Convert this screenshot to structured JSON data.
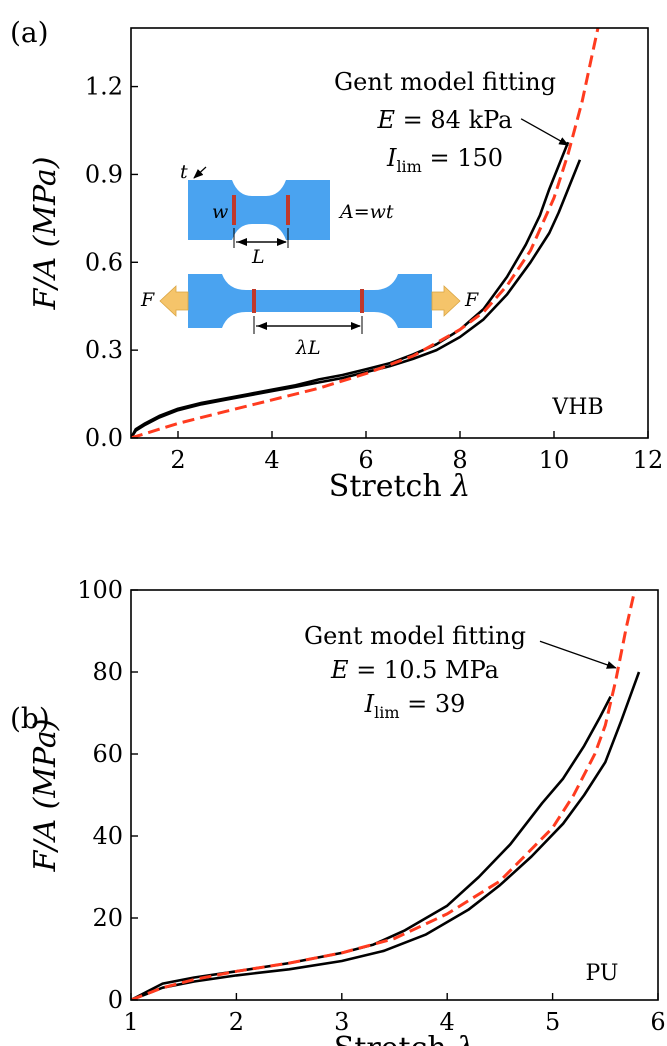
{
  "chart_data": [
    {
      "panel_label": "(a)",
      "type": "line",
      "xlabel": "Stretch",
      "xlabel_symbol": "λ",
      "ylabel": "F/A (MPa)",
      "xlim": [
        1,
        12
      ],
      "ylim": [
        0,
        1.4
      ],
      "xticks": [
        2,
        4,
        6,
        8,
        10,
        12
      ],
      "xtick_labels": [
        "2",
        "4",
        "6",
        "8",
        "10",
        "12"
      ],
      "yticks": [
        0.0,
        0.3,
        0.6,
        0.9,
        1.2
      ],
      "ytick_labels": [
        "0.0",
        "0.3",
        "0.6",
        "0.9",
        "1.2"
      ],
      "material_label": "VHB",
      "annotation": {
        "line1": "Gent model fitting",
        "E_symbol": "E",
        "E_text": " = 84 kPa",
        "I_symbol": "I",
        "I_sub": "lim",
        "I_text": " = 150",
        "arrow_from": [
          9.3,
          1.09
        ],
        "arrow_to": [
          10.3,
          1.0
        ]
      },
      "inset": {
        "t": "t",
        "w": "w",
        "L": "L",
        "area": "A=wt",
        "F_left": "F",
        "F_right": "F",
        "lambdaL": "λL",
        "sample_color": "#4aa3f0",
        "marker_color": "#c0392b",
        "arrow_color": "#f5c46a"
      },
      "series": [
        {
          "style": "solid",
          "color": "#000000",
          "x": [
            1.0,
            1.1,
            1.3,
            1.6,
            2.0,
            2.5,
            3.0,
            3.5,
            4.0,
            4.5,
            5.0,
            5.5,
            6.0,
            6.5,
            7.0,
            7.5,
            8.0,
            8.5,
            9.0,
            9.4,
            9.7,
            9.9,
            10.1,
            10.3
          ],
          "y": [
            0.0,
            0.03,
            0.05,
            0.075,
            0.1,
            0.12,
            0.135,
            0.15,
            0.165,
            0.18,
            0.2,
            0.215,
            0.235,
            0.255,
            0.285,
            0.32,
            0.37,
            0.44,
            0.55,
            0.66,
            0.76,
            0.85,
            0.93,
            1.01
          ]
        },
        {
          "style": "solid",
          "color": "#000000",
          "x": [
            1.0,
            1.1,
            1.3,
            1.6,
            2.0,
            2.5,
            3.0,
            3.5,
            4.0,
            4.5,
            5.0,
            5.5,
            6.0,
            6.5,
            7.0,
            7.5,
            8.0,
            8.5,
            9.0,
            9.5,
            9.9,
            10.1,
            10.3,
            10.55
          ],
          "y": [
            0.0,
            0.025,
            0.045,
            0.07,
            0.095,
            0.115,
            0.13,
            0.145,
            0.16,
            0.175,
            0.19,
            0.205,
            0.225,
            0.245,
            0.27,
            0.3,
            0.345,
            0.405,
            0.49,
            0.6,
            0.7,
            0.77,
            0.85,
            0.95
          ]
        },
        {
          "style": "dashed",
          "color": "#ff3b1f",
          "x": [
            1.0,
            1.5,
            2.0,
            3.0,
            4.0,
            5.0,
            6.0,
            7.0,
            8.0,
            8.5,
            9.0,
            9.5,
            10.0,
            10.3,
            10.6,
            10.8,
            10.95
          ],
          "y": [
            0.0,
            0.025,
            0.05,
            0.09,
            0.13,
            0.17,
            0.22,
            0.28,
            0.37,
            0.43,
            0.52,
            0.64,
            0.82,
            0.97,
            1.15,
            1.3,
            1.41
          ]
        }
      ]
    },
    {
      "panel_label": "(b)",
      "type": "line",
      "xlabel": "Stretch",
      "xlabel_symbol": "λ",
      "ylabel": "F/A (MPa)",
      "xlim": [
        1,
        6
      ],
      "ylim": [
        0,
        100
      ],
      "xticks": [
        1,
        2,
        3,
        4,
        5,
        6
      ],
      "xtick_labels": [
        "1",
        "2",
        "3",
        "4",
        "5",
        "6"
      ],
      "yticks": [
        0,
        20,
        40,
        60,
        80,
        100
      ],
      "ytick_labels": [
        "0",
        "20",
        "40",
        "60",
        "80",
        "100"
      ],
      "material_label": "PU",
      "annotation": {
        "line1": "Gent model fitting",
        "E_symbol": "E",
        "E_text": " = 10.5 MPa",
        "I_symbol": "I",
        "I_sub": "lim",
        "I_text": " = 39",
        "arrow_from": [
          4.88,
          87.5
        ],
        "arrow_to": [
          5.6,
          81
        ]
      },
      "series": [
        {
          "style": "solid",
          "color": "#000000",
          "x": [
            1.0,
            1.15,
            1.3,
            1.6,
            2.0,
            2.5,
            3.0,
            3.3,
            3.6,
            4.0,
            4.3,
            4.6,
            4.9,
            5.1,
            5.3,
            5.45,
            5.55
          ],
          "y": [
            0.0,
            2.0,
            4.0,
            5.5,
            7.0,
            9.0,
            11.5,
            13.5,
            17.0,
            23.0,
            30.0,
            38.0,
            48.0,
            54.0,
            62.0,
            69.0,
            74.0
          ]
        },
        {
          "style": "solid",
          "color": "#000000",
          "x": [
            1.0,
            1.15,
            1.3,
            1.6,
            2.0,
            2.5,
            3.0,
            3.4,
            3.8,
            4.2,
            4.5,
            4.8,
            5.1,
            5.3,
            5.5,
            5.65,
            5.82
          ],
          "y": [
            0.0,
            1.5,
            3.0,
            4.5,
            6.0,
            7.5,
            9.5,
            12.0,
            16.0,
            22.0,
            28.0,
            35.0,
            43.0,
            50.0,
            58.0,
            68.0,
            80.0
          ]
        },
        {
          "style": "dashed",
          "color": "#ff3b1f",
          "x": [
            1.0,
            1.3,
            1.6,
            2.0,
            2.5,
            3.0,
            3.5,
            4.0,
            4.5,
            5.0,
            5.2,
            5.4,
            5.5,
            5.6,
            5.7,
            5.78
          ],
          "y": [
            0.0,
            3.0,
            5.0,
            7.0,
            9.0,
            11.5,
            15.0,
            21.0,
            29.0,
            42.0,
            50.0,
            60.0,
            67.0,
            78.0,
            91.0,
            100.0
          ]
        }
      ]
    }
  ]
}
